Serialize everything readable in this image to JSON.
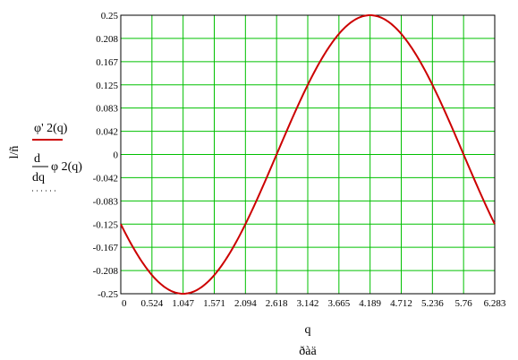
{
  "chart_data": {
    "type": "line",
    "title": "",
    "xlabel": "q",
    "x_unit": "ðàä",
    "ylabel": "l/ñ",
    "xlim": [
      0,
      6.283
    ],
    "ylim": [
      -0.25,
      0.25
    ],
    "x_ticks": [
      "0",
      "0.524",
      "1.047",
      "1.571",
      "2.094",
      "2.618",
      "3.142",
      "3.665",
      "4.189",
      "4.712",
      "5.236",
      "5.76",
      "6.283"
    ],
    "y_ticks": [
      "0.25",
      "0.208",
      "0.167",
      "0.125",
      "0.083",
      "0.042",
      "0",
      "-0.042",
      "-0.083",
      "-0.125",
      "-0.167",
      "-0.208",
      "-0.25"
    ],
    "grid": true,
    "grid_color": "#00c000",
    "series": [
      {
        "name_parts": {
          "prefix": "φ' 2",
          "arg": "(q)"
        },
        "color": "#cc0000",
        "style": "solid",
        "model": {
          "amplitude": 0.25,
          "phase": 2.618
        }
      },
      {
        "name_parts": {
          "num": "d",
          "den": "dq",
          "func": "φ 2",
          "arg": "(q)"
        },
        "color": "#0000cc",
        "style": "dotted",
        "model": {
          "amplitude": 0.25,
          "phase": 2.618
        }
      }
    ]
  }
}
